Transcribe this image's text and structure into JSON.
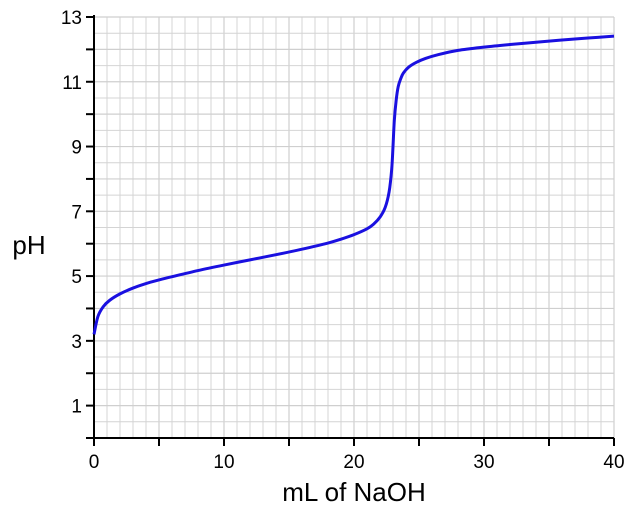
{
  "chart_data": {
    "type": "line",
    "title": "",
    "xlabel": "mL of NaOH",
    "ylabel": "pH",
    "xlim": [
      0,
      40
    ],
    "ylim": [
      0,
      13
    ],
    "x_ticks": [
      0,
      10,
      20,
      30,
      40
    ],
    "x_tick_labels": [
      "0",
      "10",
      "20",
      "30",
      "40"
    ],
    "y_ticks": [
      1,
      3,
      5,
      7,
      9,
      11,
      13
    ],
    "y_tick_labels": [
      "1",
      "3",
      "5",
      "7",
      "9",
      "11",
      "13"
    ],
    "grid": true,
    "colors": {
      "line": "#1a10e0",
      "grid": "#d4d4d4",
      "axis": "#000000"
    },
    "series": [
      {
        "x": [
          0,
          0.3,
          0.7,
          1.2,
          2,
          3,
          4,
          5,
          6,
          8,
          10,
          12,
          14,
          16,
          18,
          19,
          20,
          21,
          21.5,
          22,
          22.4,
          22.7,
          22.9,
          23.0,
          23.1,
          23.25,
          23.4,
          23.6,
          23.8,
          24.2,
          24.8,
          25.5,
          26.5,
          28,
          30,
          32,
          34,
          36,
          38,
          40
        ],
        "y": [
          3.2,
          3.75,
          4.05,
          4.25,
          4.45,
          4.63,
          4.77,
          4.88,
          4.98,
          5.17,
          5.34,
          5.5,
          5.66,
          5.83,
          6.02,
          6.14,
          6.28,
          6.46,
          6.6,
          6.82,
          7.12,
          7.6,
          8.3,
          9.0,
          9.8,
          10.45,
          10.85,
          11.1,
          11.27,
          11.45,
          11.6,
          11.72,
          11.84,
          11.97,
          12.07,
          12.15,
          12.22,
          12.29,
          12.35,
          12.41
        ]
      }
    ]
  }
}
